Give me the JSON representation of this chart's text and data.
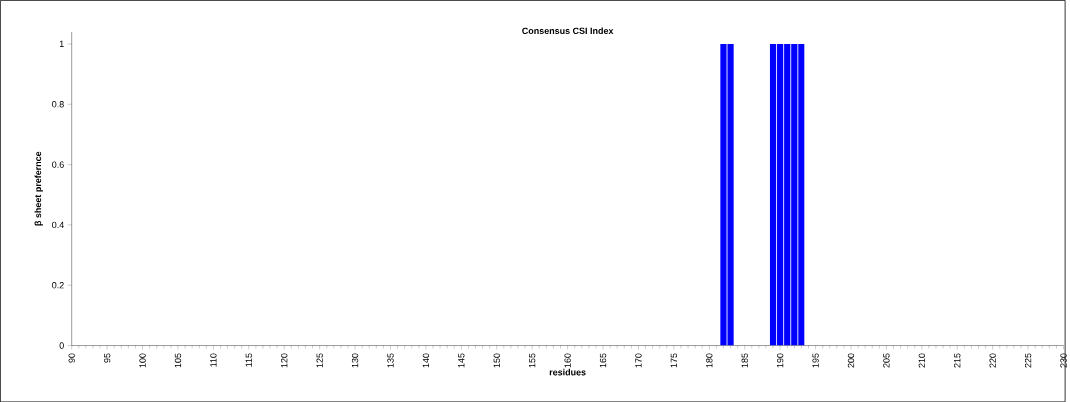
{
  "chart_data": {
    "type": "bar",
    "title": "Consensus CSI Index",
    "xlabel": "residues",
    "ylabel": "β sheet prefernce",
    "x": [
      182,
      183,
      189,
      190,
      191,
      192,
      193
    ],
    "values": [
      1,
      1,
      1,
      1,
      1,
      1,
      1
    ],
    "color": "#0000ff",
    "xlim": [
      90,
      230
    ],
    "xticks": [
      90,
      95,
      100,
      105,
      110,
      115,
      120,
      125,
      130,
      135,
      140,
      145,
      150,
      155,
      160,
      165,
      170,
      175,
      180,
      185,
      190,
      195,
      200,
      205,
      210,
      215,
      220,
      225,
      230
    ],
    "ylim": [
      0,
      1.04
    ],
    "yticks": [
      0,
      0.2,
      0.4,
      0.6,
      0.8,
      1
    ]
  }
}
